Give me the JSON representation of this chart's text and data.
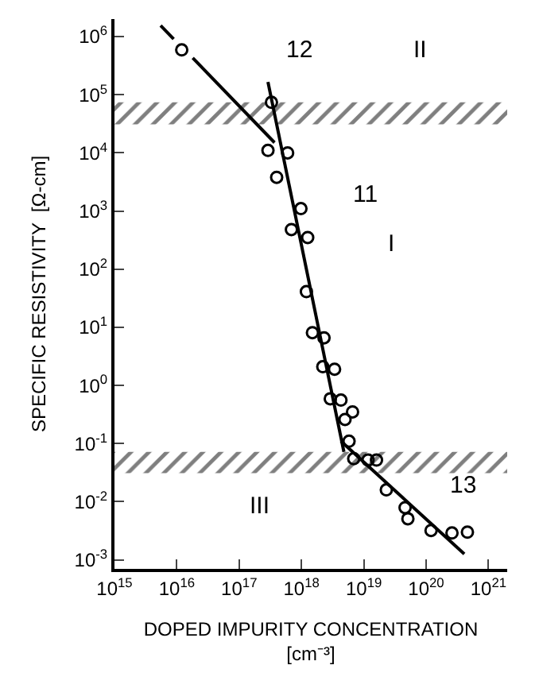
{
  "chart_data": {
    "type": "scatter",
    "xlabel": "DOPED IMPURITY CONCENTRATION\n[cm⁻³]",
    "ylabel": "SPECIFIC RESISTIVITY  [Ω-cm]",
    "log": "xy",
    "marker": "circle",
    "xlim": [
      1000000000000000.0,
      2e+21
    ],
    "ylim": [
      0.0007,
      2000000.0
    ],
    "xticks": [
      {
        "value": 1000000000000000.0,
        "label": "10$^{15}$"
      },
      {
        "value": 1e+16,
        "label": "10$^{16}$"
      },
      {
        "value": 1e+17,
        "label": "10$^{17}$"
      },
      {
        "value": 1e+18,
        "label": "10$^{18}$"
      },
      {
        "value": 1e+19,
        "label": "10$^{19}$"
      },
      {
        "value": 1e+20,
        "label": "10$^{20}$"
      },
      {
        "value": 1e+21,
        "label": "10$^{21}$"
      }
    ],
    "yticks": [
      {
        "value": 0.001,
        "label": "10$^{-3}$"
      },
      {
        "value": 0.01,
        "label": "10$^{-2}$"
      },
      {
        "value": 0.1,
        "label": "10$^{-1}$"
      },
      {
        "value": 1,
        "label": "10$^{0}$"
      },
      {
        "value": 10,
        "label": "10$^{1}$"
      },
      {
        "value": 100,
        "label": "10$^{2}$"
      },
      {
        "value": 1000,
        "label": "10$^{3}$"
      },
      {
        "value": 10000,
        "label": "10$^{4}$"
      },
      {
        "value": 100000,
        "label": "10$^{5}$"
      },
      {
        "value": 1000000,
        "label": "10$^{6}$"
      }
    ],
    "series": [
      {
        "color": "#000000",
        "x": [
          1.2e+16,
          3.3e+17,
          2.9e+17,
          6e+17,
          4e+17,
          9.8e+17,
          6.9e+17,
          1.26e+18,
          1.2e+18,
          1.5e+18,
          2.3e+18,
          2.2e+18,
          3.4e+18,
          2.9e+18,
          4.3e+18,
          5e+18,
          6.6e+18,
          5.8e+18,
          6.9e+18,
          1.17e+19,
          1.6e+19,
          2.3e+19,
          4.6e+19,
          5.1e+19,
          1.2e+20,
          2.6e+20,
          4.6e+20
        ],
        "values": [
          590000.0,
          74000.0,
          11000.0,
          10000.0,
          3800.0,
          1100.0,
          480,
          350,
          41,
          8.1,
          6.6,
          2.1,
          1.9,
          0.59,
          0.56,
          0.26,
          0.35,
          0.11,
          0.055,
          0.052,
          0.052,
          0.016,
          0.0079,
          0.0051,
          0.0032,
          0.0029,
          0.003
        ]
      },
      {
        "type": "line",
        "marker": "none",
        "color": "#000000",
        "x": [
          5500000000000000.0,
          8900000000000000.0,
          null,
          1.8e+16,
          3.7e+17
        ],
        "values": [
          1550000.0,
          910000.0,
          null,
          430000.0,
          15000.0
        ]
      },
      {
        "type": "line",
        "marker": "none",
        "color": "#000000",
        "x": [
          2.9e+17,
          4.8e+18
        ],
        "values": [
          166000.0,
          0.072
        ]
      },
      {
        "type": "line",
        "marker": "none",
        "color": "#000000",
        "x": [
          4.3e+18,
          4.1e+20
        ],
        "values": [
          0.11,
          0.00126
        ]
      }
    ],
    "bands": [
      {
        "axis": "y",
        "from": 31000.0,
        "to": 74000.0
      },
      {
        "axis": "y",
        "from": 0.031,
        "to": 0.072
      }
    ],
    "annotations": [
      "12",
      "11",
      "13",
      "II",
      "I",
      "III"
    ]
  }
}
